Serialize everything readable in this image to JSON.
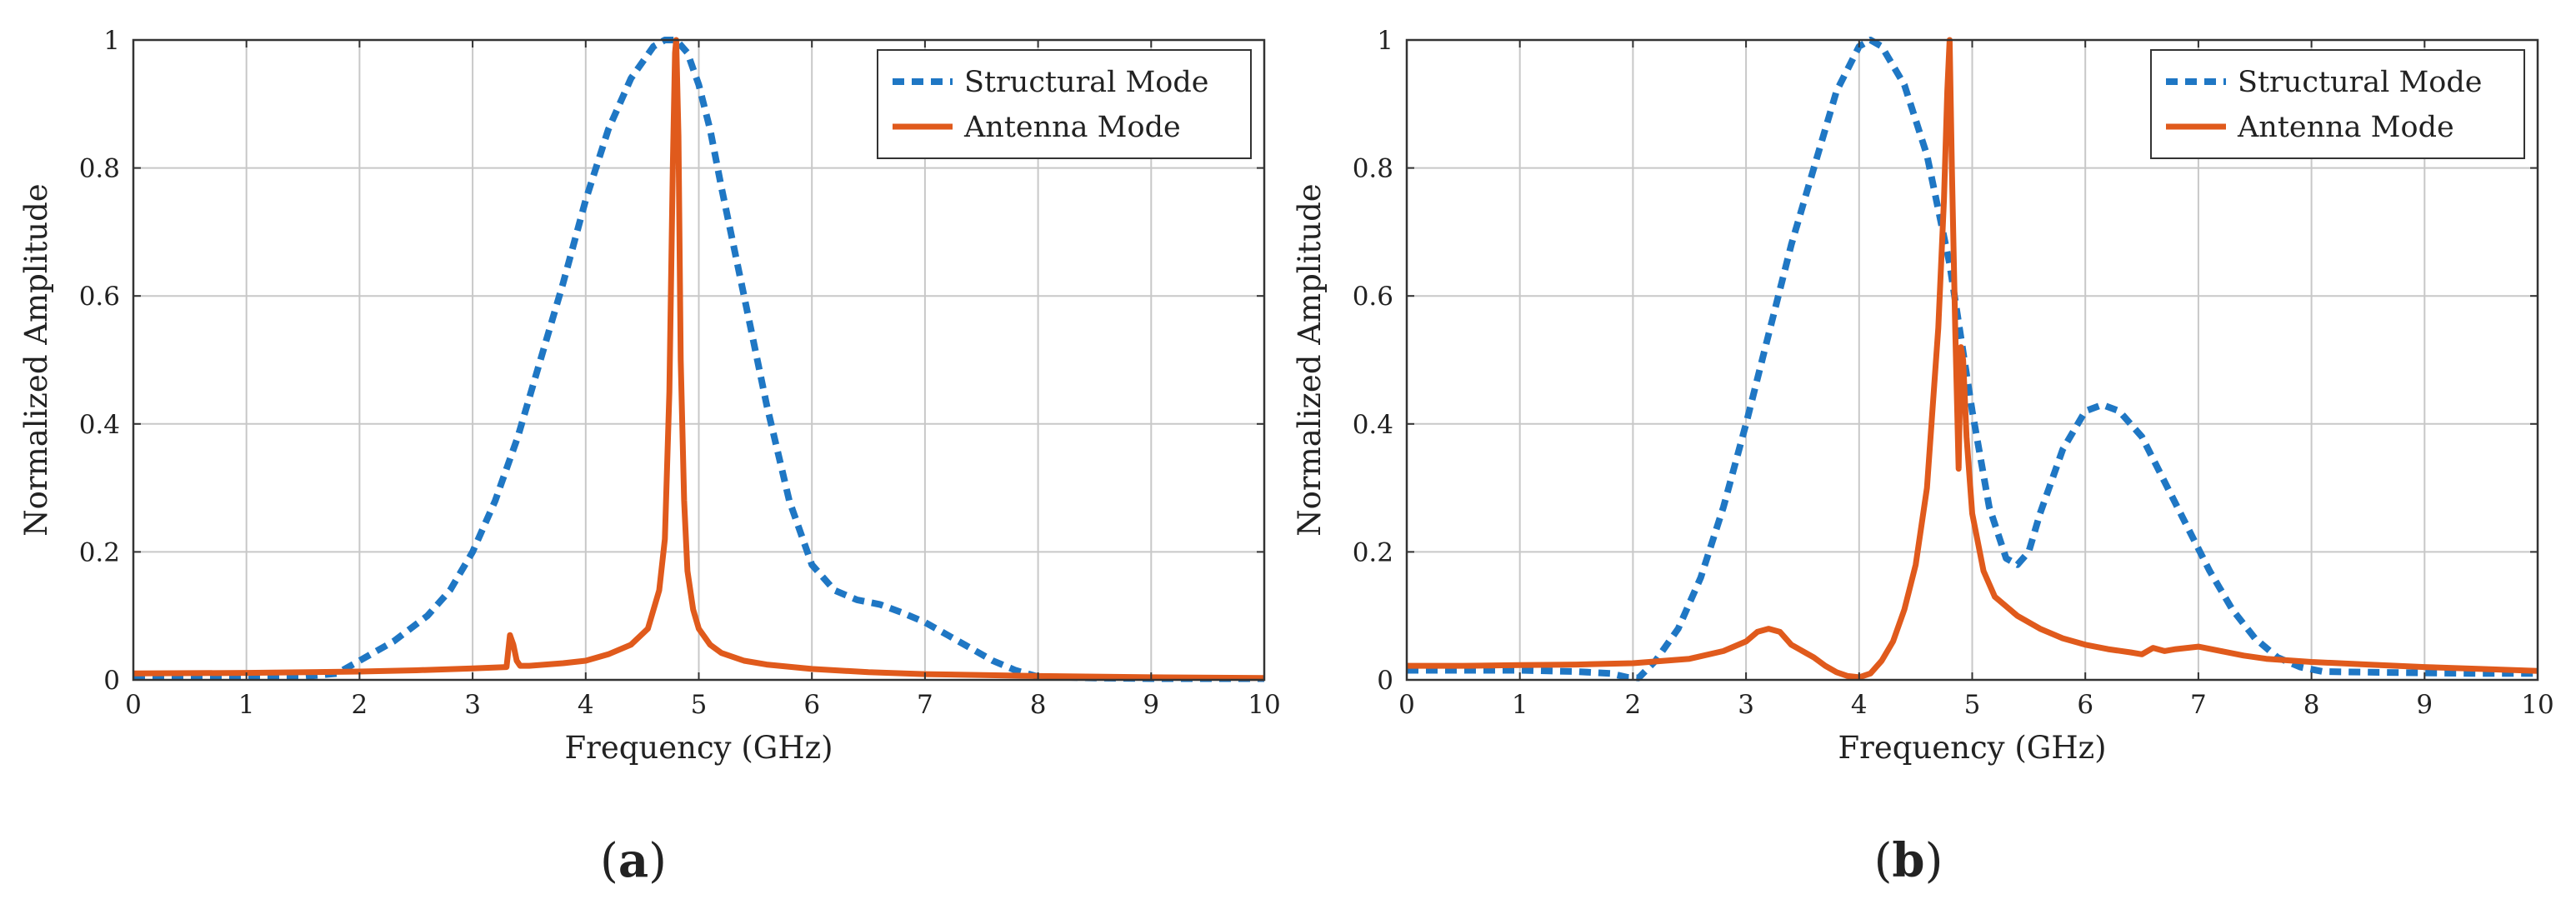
{
  "colors": {
    "structural": "#1f77c4",
    "antenna": "#e05a1c",
    "grid": "#c8c8c8",
    "axis": "#333333"
  },
  "chart_data": [
    {
      "type": "line",
      "panel_label": "(a)",
      "panel_letter": "a",
      "xlabel": "Frequency (GHz)",
      "ylabel": "Normalized Amplitude",
      "xlim": [
        0,
        10
      ],
      "ylim": [
        0,
        1
      ],
      "xticks": [
        0,
        1,
        2,
        3,
        4,
        5,
        6,
        7,
        8,
        9,
        10
      ],
      "yticks": [
        0,
        0.2,
        0.4,
        0.6,
        0.8,
        1
      ],
      "grid": true,
      "legend_position": "top-right",
      "series": [
        {
          "name": "Structural Mode",
          "style": "dashed",
          "x": [
            0,
            0.5,
            1.0,
            1.5,
            1.8,
            2.0,
            2.3,
            2.6,
            2.8,
            3.0,
            3.2,
            3.4,
            3.6,
            3.8,
            4.0,
            4.2,
            4.4,
            4.6,
            4.7,
            4.8,
            4.9,
            5.0,
            5.1,
            5.2,
            5.4,
            5.6,
            5.8,
            6.0,
            6.2,
            6.4,
            6.6,
            6.8,
            7.0,
            7.2,
            7.4,
            7.6,
            7.8,
            8.0,
            8.5,
            9.0,
            9.5,
            10.0
          ],
          "y": [
            0.005,
            0.005,
            0.005,
            0.005,
            0.01,
            0.03,
            0.06,
            0.1,
            0.14,
            0.2,
            0.28,
            0.38,
            0.5,
            0.62,
            0.75,
            0.86,
            0.94,
            0.99,
            1.0,
            1.0,
            0.98,
            0.93,
            0.86,
            0.77,
            0.6,
            0.43,
            0.28,
            0.18,
            0.14,
            0.125,
            0.118,
            0.105,
            0.09,
            0.07,
            0.05,
            0.03,
            0.015,
            0.005,
            0.003,
            0.002,
            0.002,
            0.002
          ]
        },
        {
          "name": "Antenna Mode",
          "style": "solid",
          "x": [
            0,
            1.0,
            2.0,
            2.5,
            3.0,
            3.3,
            3.33,
            3.36,
            3.39,
            3.42,
            3.5,
            3.8,
            4.0,
            4.2,
            4.4,
            4.55,
            4.65,
            4.7,
            4.74,
            4.77,
            4.79,
            4.8,
            4.82,
            4.84,
            4.87,
            4.9,
            4.95,
            5.0,
            5.1,
            5.2,
            5.4,
            5.6,
            6.0,
            6.5,
            7.0,
            8.0,
            9.0,
            10.0
          ],
          "y": [
            0.01,
            0.011,
            0.013,
            0.015,
            0.018,
            0.02,
            0.07,
            0.055,
            0.03,
            0.022,
            0.022,
            0.026,
            0.03,
            0.04,
            0.055,
            0.08,
            0.14,
            0.22,
            0.45,
            0.8,
            0.98,
            1.0,
            0.85,
            0.5,
            0.28,
            0.17,
            0.11,
            0.08,
            0.055,
            0.042,
            0.03,
            0.024,
            0.017,
            0.012,
            0.009,
            0.006,
            0.004,
            0.003
          ]
        }
      ]
    },
    {
      "type": "line",
      "panel_label": "(b)",
      "panel_letter": "b",
      "xlabel": "Frequency (GHz)",
      "ylabel": "Normalized Amplitude",
      "xlim": [
        0,
        10
      ],
      "ylim": [
        0,
        1
      ],
      "xticks": [
        0,
        1,
        2,
        3,
        4,
        5,
        6,
        7,
        8,
        9,
        10
      ],
      "yticks": [
        0,
        0.2,
        0.4,
        0.6,
        0.8,
        1
      ],
      "grid": true,
      "legend_position": "top-right",
      "series": [
        {
          "name": "Structural Mode",
          "style": "dashed",
          "x": [
            0,
            0.5,
            1.0,
            1.5,
            1.8,
            1.95,
            2.05,
            2.2,
            2.4,
            2.6,
            2.8,
            3.0,
            3.2,
            3.4,
            3.6,
            3.8,
            4.0,
            4.1,
            4.2,
            4.4,
            4.6,
            4.8,
            5.0,
            5.15,
            5.3,
            5.4,
            5.5,
            5.6,
            5.8,
            6.0,
            6.15,
            6.3,
            6.5,
            6.7,
            6.9,
            7.1,
            7.3,
            7.5,
            7.7,
            7.9,
            8.1,
            8.5,
            9.0,
            9.5,
            10.0
          ],
          "y": [
            0.015,
            0.015,
            0.015,
            0.013,
            0.01,
            0.004,
            0.003,
            0.03,
            0.08,
            0.16,
            0.27,
            0.4,
            0.54,
            0.68,
            0.8,
            0.92,
            0.99,
            1.0,
            0.99,
            0.93,
            0.82,
            0.65,
            0.42,
            0.27,
            0.19,
            0.18,
            0.2,
            0.26,
            0.36,
            0.42,
            0.43,
            0.42,
            0.38,
            0.31,
            0.24,
            0.17,
            0.11,
            0.065,
            0.035,
            0.02,
            0.013,
            0.012,
            0.011,
            0.01,
            0.01
          ]
        },
        {
          "name": "Antenna Mode",
          "style": "solid",
          "x": [
            0,
            0.5,
            1.0,
            1.5,
            2.0,
            2.5,
            2.8,
            3.0,
            3.1,
            3.2,
            3.3,
            3.4,
            3.5,
            3.6,
            3.7,
            3.8,
            3.9,
            4.0,
            4.1,
            4.2,
            4.3,
            4.4,
            4.5,
            4.6,
            4.7,
            4.75,
            4.78,
            4.8,
            4.82,
            4.85,
            4.88,
            4.9,
            4.92,
            4.95,
            5.0,
            5.1,
            5.2,
            5.4,
            5.6,
            5.8,
            6.0,
            6.2,
            6.4,
            6.5,
            6.6,
            6.7,
            6.8,
            7.0,
            7.2,
            7.4,
            7.6,
            8.0,
            8.5,
            9.0,
            9.5,
            10.0
          ],
          "y": [
            0.022,
            0.022,
            0.023,
            0.024,
            0.026,
            0.033,
            0.045,
            0.06,
            0.075,
            0.08,
            0.075,
            0.055,
            0.045,
            0.035,
            0.022,
            0.012,
            0.006,
            0.004,
            0.01,
            0.03,
            0.06,
            0.11,
            0.18,
            0.3,
            0.55,
            0.75,
            0.92,
            1.0,
            0.8,
            0.55,
            0.33,
            0.52,
            0.5,
            0.38,
            0.26,
            0.17,
            0.13,
            0.1,
            0.08,
            0.065,
            0.055,
            0.048,
            0.043,
            0.04,
            0.05,
            0.045,
            0.048,
            0.052,
            0.045,
            0.038,
            0.033,
            0.028,
            0.024,
            0.02,
            0.017,
            0.014
          ]
        }
      ]
    }
  ]
}
